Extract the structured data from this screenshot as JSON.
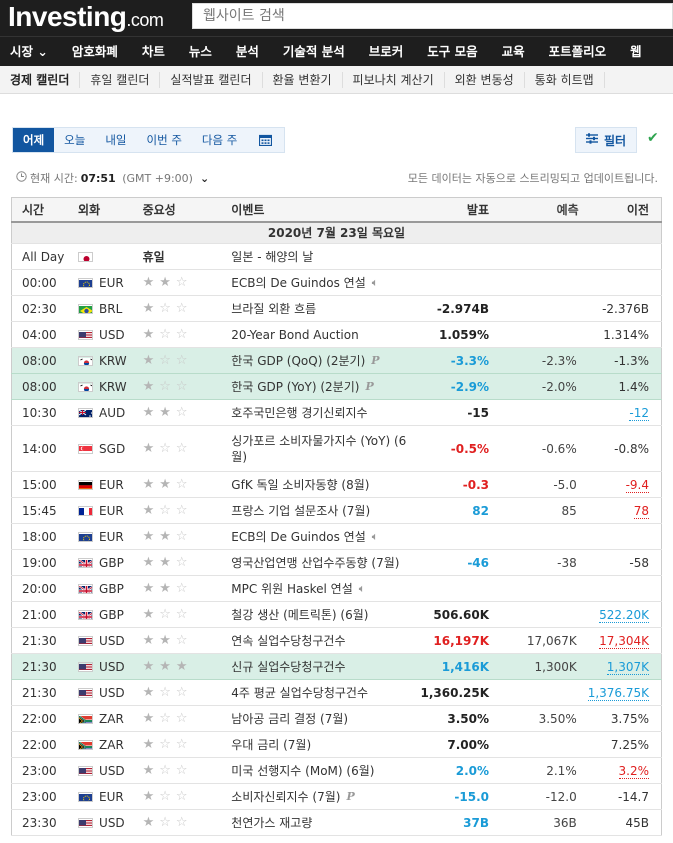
{
  "brand": {
    "name": "Investing",
    "suffix": ".com"
  },
  "search": {
    "placeholder": "웹사이트 검색"
  },
  "main_nav": [
    "시장",
    "암호화폐",
    "차트",
    "뉴스",
    "분석",
    "기술적 분석",
    "브로커",
    "도구 모음",
    "교육",
    "포트폴리오",
    "웹"
  ],
  "sub_nav": [
    "경제 캘린더",
    "휴일 캘린더",
    "실적발표 캘린더",
    "환율 변환기",
    "피보나치 계산기",
    "외환 변동성",
    "통화 히트맵"
  ],
  "tabs": [
    "어제",
    "오늘",
    "내일",
    "이번 주",
    "다음 주"
  ],
  "filter_label": "필터",
  "timebar": {
    "label": "현재 시간:",
    "time": "07:51",
    "tz": "(GMT +9:00)"
  },
  "streaming_note": "모든 데이터는 자동으로 스트리밍되고 업데이트됩니다.",
  "table": {
    "headers": [
      "시간",
      "외화",
      "중요성",
      "이벤트",
      "발표",
      "예측",
      "이전"
    ],
    "date": "2020년 7월 23일 목요일",
    "rows": [
      {
        "time": "All Day",
        "cur": "",
        "flag": "jp",
        "imp": "휴일",
        "event": "일본 - 해양의 날",
        "act": "",
        "fc": "",
        "prev": ""
      },
      {
        "time": "00:00",
        "cur": "EUR",
        "flag": "eu",
        "imp": 2,
        "event": "ECB의 De Guindos 연설",
        "act": "",
        "fc": "",
        "prev": "",
        "icon": "speaker"
      },
      {
        "time": "02:30",
        "cur": "BRL",
        "flag": "br",
        "imp": 1,
        "event": "브라질 외환 흐름",
        "act": "-2.974B",
        "fc": "",
        "prev": "-2.376B"
      },
      {
        "time": "04:00",
        "cur": "USD",
        "flag": "us",
        "imp": 1,
        "event": "20-Year Bond Auction",
        "act": "1.059%",
        "fc": "",
        "prev": "1.314%"
      },
      {
        "time": "08:00",
        "cur": "KRW",
        "flag": "kr",
        "imp": 1,
        "event": "한국 GDP (QoQ) (2분기)",
        "act": "-3.3%",
        "fc": "-2.3%",
        "prev": "-1.3%",
        "hl": true,
        "icon": "P"
      },
      {
        "time": "08:00",
        "cur": "KRW",
        "flag": "kr",
        "imp": 1,
        "event": "한국 GDP (YoY) (2분기)",
        "act": "-2.9%",
        "fc": "-2.0%",
        "prev": "1.4%",
        "hl": true,
        "icon": "P"
      },
      {
        "time": "10:30",
        "cur": "AUD",
        "flag": "au",
        "imp": 2,
        "event": "호주국민은행 경기신뢰지수",
        "act": "-15",
        "fc": "",
        "prev": "-12"
      },
      {
        "time": "14:00",
        "cur": "SGD",
        "flag": "sg",
        "imp": 1,
        "event": "싱가포르 소비자물가지수 (YoY) (6월)",
        "act": "-0.5%",
        "fc": "-0.6%",
        "prev": "-0.8%",
        "tall": true
      },
      {
        "time": "15:00",
        "cur": "EUR",
        "flag": "de",
        "imp": 2,
        "event": "GfK 독일 소비자동향 (8월)",
        "act": "-0.3",
        "fc": "-5.0",
        "prev": "-9.4"
      },
      {
        "time": "15:45",
        "cur": "EUR",
        "flag": "fr",
        "imp": 1,
        "event": "프랑스 기업 설문조사 (7월)",
        "act": "82",
        "fc": "85",
        "prev": "78"
      },
      {
        "time": "18:00",
        "cur": "EUR",
        "flag": "eu",
        "imp": 2,
        "event": "ECB의 De Guindos 연설",
        "act": "",
        "fc": "",
        "prev": "",
        "icon": "speaker"
      },
      {
        "time": "19:00",
        "cur": "GBP",
        "flag": "gb",
        "imp": 2,
        "event": "영국산업연맹 산업수주동향 (7월)",
        "act": "-46",
        "fc": "-38",
        "prev": "-58"
      },
      {
        "time": "20:00",
        "cur": "GBP",
        "flag": "gb",
        "imp": 2,
        "event": "MPC 위원 Haskel 연설",
        "act": "",
        "fc": "",
        "prev": "",
        "icon": "speaker"
      },
      {
        "time": "21:00",
        "cur": "GBP",
        "flag": "gb",
        "imp": 1,
        "event": "철강 생산 (메트릭톤) (6월)",
        "act": "506.60K",
        "fc": "",
        "prev": "522.20K"
      },
      {
        "time": "21:30",
        "cur": "USD",
        "flag": "us",
        "imp": 2,
        "event": "연속 실업수당청구건수",
        "act": "16,197K",
        "fc": "17,067K",
        "prev": "17,304K"
      },
      {
        "time": "21:30",
        "cur": "USD",
        "flag": "us",
        "imp": 3,
        "event": "신규 실업수당청구건수",
        "act": "1,416K",
        "fc": "1,300K",
        "prev": "1,307K",
        "hl": true
      },
      {
        "time": "21:30",
        "cur": "USD",
        "flag": "us",
        "imp": 1,
        "event": "4주 평균 실업수당청구건수",
        "act": "1,360.25K",
        "fc": "",
        "prev": "1,376.75K"
      },
      {
        "time": "22:00",
        "cur": "ZAR",
        "flag": "za",
        "imp": 1,
        "event": "남아공 금리 결정 (7월)",
        "act": "3.50%",
        "fc": "3.50%",
        "prev": "3.75%"
      },
      {
        "time": "22:00",
        "cur": "ZAR",
        "flag": "za",
        "imp": 1,
        "event": "우대 금리 (7월)",
        "act": "7.00%",
        "fc": "",
        "prev": "7.25%"
      },
      {
        "time": "23:00",
        "cur": "USD",
        "flag": "us",
        "imp": 1,
        "event": "미국 선행지수 (MoM) (6월)",
        "act": "2.0%",
        "fc": "2.1%",
        "prev": "3.2%"
      },
      {
        "time": "23:00",
        "cur": "EUR",
        "flag": "eu",
        "imp": 1,
        "event": "소비자신뢰지수 (7월)",
        "act": "-15.0",
        "fc": "-12.0",
        "prev": "-14.7",
        "icon": "P"
      },
      {
        "time": "23:30",
        "cur": "USD",
        "flag": "us",
        "imp": 1,
        "event": "천연가스 재고량",
        "act": "37B",
        "fc": "36B",
        "prev": "45B"
      }
    ]
  },
  "colors": {
    "positive": "#1a9bd7",
    "negative": "#e02020",
    "highlight_row": "#d9efe6",
    "tab_active": "#1256a0"
  }
}
